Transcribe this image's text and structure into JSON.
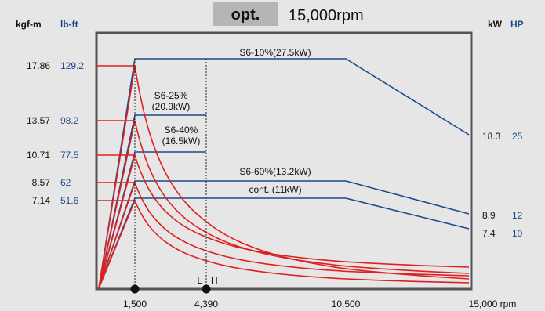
{
  "header": {
    "badge": "opt.",
    "speed": "15,000rpm"
  },
  "units": {
    "torque_kgfm": "kgf-m",
    "torque_lbft": "lb-ft",
    "power_kw": "kW",
    "power_hp": "HP"
  },
  "colors": {
    "torque": "#e02020",
    "power": "#1b4a8c",
    "frame": "#555555",
    "plot_bg": "#e6e6e6",
    "header_bg": "#b5b5b5",
    "blue_text": "#1b4a8c"
  },
  "chart_data": {
    "type": "line",
    "x_label_suffix": "rpm",
    "x_ticks": [
      {
        "value": 1500,
        "label": "1,500"
      },
      {
        "value": 4390,
        "label": "4,390"
      },
      {
        "value": 10500,
        "label": "10,500"
      },
      {
        "value": 15000,
        "label": "15,000 rpm"
      }
    ],
    "x_range": [
      0,
      15000
    ],
    "left_ticks": [
      {
        "kgfm": "17.86",
        "lbft": "129.2"
      },
      {
        "kgfm": "13.57",
        "lbft": "98.2"
      },
      {
        "kgfm": "10.71",
        "lbft": "77.5"
      },
      {
        "kgfm": "8.57",
        "lbft": "62"
      },
      {
        "kgfm": "7.14",
        "lbft": "51.6"
      }
    ],
    "right_ticks": [
      {
        "kw": "18.3",
        "hp": "25"
      },
      {
        "kw": "8.9",
        "hp": "12"
      },
      {
        "kw": "7.4",
        "hp": "10"
      }
    ],
    "power_series": [
      {
        "name": "S6-10%(27.5kW)",
        "points": [
          [
            0,
            0
          ],
          [
            1500,
            27.5
          ],
          [
            10500,
            27.5
          ],
          [
            15000,
            18.3
          ]
        ]
      },
      {
        "name": "S6-25%\n(20.9kW)",
        "points": [
          [
            0,
            0
          ],
          [
            1500,
            20.9
          ],
          [
            4390,
            20.9
          ]
        ]
      },
      {
        "name": "S6-40%\n(16.5kW)",
        "points": [
          [
            0,
            0
          ],
          [
            1500,
            16.5
          ],
          [
            4390,
            16.5
          ]
        ]
      },
      {
        "name": "S6-60%(13.2kW)",
        "points": [
          [
            0,
            0
          ],
          [
            1500,
            13.2
          ],
          [
            10500,
            13.2
          ],
          [
            15000,
            8.9
          ]
        ]
      },
      {
        "name": "cont. (11kW)",
        "points": [
          [
            0,
            0
          ],
          [
            1500,
            11
          ],
          [
            10500,
            11
          ],
          [
            15000,
            7.4
          ]
        ]
      }
    ],
    "torque_series": [
      {
        "values": [
          17.86,
          1500,
          27.5,
          10500,
          15000,
          18.3
        ]
      },
      {
        "values": [
          13.57,
          1500,
          20.9,
          15000,
          15000,
          20.9
        ]
      },
      {
        "values": [
          10.71,
          1500,
          16.5,
          15000,
          15000,
          16.5
        ]
      },
      {
        "values": [
          8.57,
          1500,
          13.2,
          10500,
          15000,
          8.9
        ]
      },
      {
        "values": [
          7.14,
          1500,
          11,
          10500,
          15000,
          7.4
        ]
      }
    ],
    "markers": [
      {
        "x": 1500,
        "label": ""
      },
      {
        "x": 4390,
        "label_left": "L",
        "label_right": "H"
      }
    ]
  }
}
